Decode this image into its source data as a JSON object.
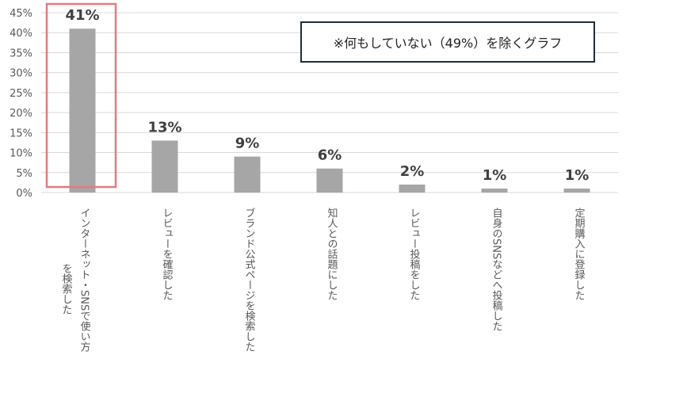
{
  "chart_data": {
    "type": "bar",
    "categories": [
      [
        "インターネット・SNSで使い方",
        "を検索した"
      ],
      [
        "レビューを確認した"
      ],
      [
        "ブランド公式ページを検索した"
      ],
      [
        "知人との話題にした"
      ],
      [
        "レビュー投稿をした"
      ],
      [
        "自身のSNSなどへ投稿した"
      ],
      [
        "定期購入に登録した"
      ]
    ],
    "values": [
      41,
      13,
      9,
      6,
      2,
      1,
      1
    ],
    "data_labels": [
      "41%",
      "13%",
      "9%",
      "6%",
      "2%",
      "1%",
      "1%"
    ],
    "ylim": [
      0,
      45
    ],
    "yticks": [
      0,
      5,
      10,
      15,
      20,
      25,
      30,
      35,
      40,
      45
    ],
    "ytick_labels": [
      "0%",
      "5%",
      "10%",
      "15%",
      "20%",
      "25%",
      "30%",
      "35%",
      "40%",
      "45%"
    ],
    "grid": true,
    "highlight_index": 0,
    "note": "※何もしていない（49%）を除くグラフ",
    "colors": {
      "bar": "#a6a6a6",
      "grid": "#d9d9d9",
      "highlight": "#e8787f",
      "note_border": "#1f2d3d"
    }
  }
}
